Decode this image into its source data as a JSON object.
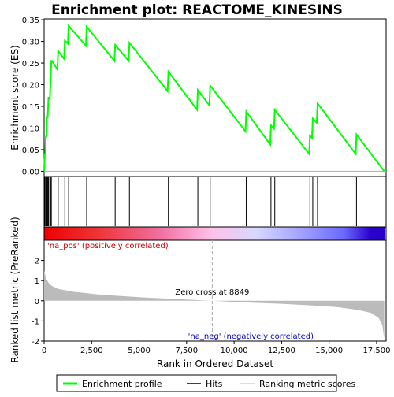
{
  "chart_data": {
    "type": "line",
    "title": "Enrichment plot: REACTOME_KINESINS",
    "panels": {
      "enrichment": {
        "ylabel": "Enrichment score (ES)",
        "ylim": [
          -0.012,
          0.352
        ],
        "yticks": [
          "0.00",
          "0.05",
          "0.10",
          "0.15",
          "0.20",
          "0.25",
          "0.30",
          "0.35"
        ],
        "ytick_values": [
          0.0,
          0.05,
          0.1,
          0.15,
          0.2,
          0.25,
          0.3,
          0.35
        ],
        "series": [
          {
            "name": "Enrichment profile",
            "color": "#00ff00",
            "x": [
              0,
              40,
              60,
              90,
              120,
              150,
              190,
              230,
              260,
              300,
              340,
              380,
              420,
              700,
              740,
              1050,
              1090,
              1250,
              1290,
              2200,
              2240,
              3700,
              3740,
              4450,
              4490,
              6500,
              6540,
              8050,
              8090,
              8700,
              8740,
              10600,
              10640,
              11900,
              11940,
              12100,
              12140,
              13950,
              13990,
              14100,
              14140,
              14350,
              14390,
              16400,
              16440,
              17900
            ],
            "y": [
              0.0,
              0.04,
              0.04,
              0.08,
              0.08,
              0.125,
              0.125,
              0.17,
              0.17,
              0.165,
              0.21,
              0.255,
              0.255,
              0.235,
              0.278,
              0.26,
              0.302,
              0.295,
              0.336,
              0.29,
              0.334,
              0.255,
              0.292,
              0.255,
              0.297,
              0.185,
              0.23,
              0.142,
              0.188,
              0.152,
              0.198,
              0.092,
              0.138,
              0.062,
              0.106,
              0.098,
              0.142,
              0.04,
              0.082,
              0.077,
              0.122,
              0.112,
              0.157,
              0.04,
              0.085,
              0.0
            ]
          }
        ]
      },
      "hits": {
        "positions": [
          40,
          90,
          120,
          150,
          190,
          230,
          300,
          340,
          380,
          740,
          1090,
          1290,
          2240,
          3740,
          4490,
          6540,
          8090,
          8740,
          10640,
          11940,
          12140,
          13990,
          14140,
          14390,
          16440
        ]
      },
      "ranked": {
        "ylabel": "Ranked list metric (PreRanked)",
        "xlabel": "Rank in Ordered Dataset",
        "ylim": [
          -2,
          3
        ],
        "yticks": [
          "-2",
          "-1",
          "0",
          "1",
          "2"
        ],
        "ytick_values": [
          -2,
          -1,
          0,
          1,
          2
        ],
        "xlim": [
          0,
          18000
        ],
        "xticks": [
          "0",
          "2,500",
          "5,000",
          "7,500",
          "10,000",
          "12,500",
          "15,000",
          "17,500"
        ],
        "xtick_values": [
          0,
          2500,
          5000,
          7500,
          10000,
          12500,
          15000,
          17500
        ],
        "metric_x": [
          0,
          100,
          300,
          700,
          1500,
          3000,
          5000,
          7000,
          8849,
          10500,
          12500,
          14500,
          15500,
          16500,
          17200,
          17600,
          17800,
          17900
        ],
        "metric_y": [
          1.5,
          1.1,
          0.8,
          0.6,
          0.45,
          0.3,
          0.18,
          0.08,
          0.0,
          -0.08,
          -0.15,
          -0.25,
          -0.32,
          -0.45,
          -0.6,
          -0.85,
          -1.2,
          -1.9
        ],
        "zero_cross_label": "Zero cross at 8849",
        "zero_cross": 8849,
        "pos_label": "'na_pos' (positively correlated)",
        "neg_label": "'na_neg' (negatively correlated)"
      }
    },
    "legend": {
      "placement": "bottom",
      "items": [
        {
          "label": "Enrichment profile",
          "color": "#00ff00"
        },
        {
          "label": "Hits",
          "color": "#000000"
        },
        {
          "label": "Ranking metric scores",
          "color": "#bbbbbb"
        }
      ]
    },
    "colors": {
      "pos_label": "#cc0000",
      "neg_label": "#0000cc",
      "metric_fill": "#bbbbbb",
      "zero_line": "#aaaaaa"
    }
  }
}
